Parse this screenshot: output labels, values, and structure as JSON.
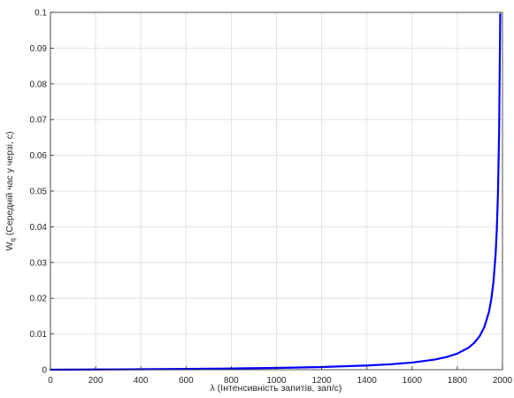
{
  "chart_data": {
    "type": "line",
    "title": "",
    "xlabel": "λ (Інтенсивність запитів, зап/с)",
    "ylabel_main": "W",
    "ylabel_sub": "q",
    "ylabel_rest": " (Середній час у черзі, с)",
    "xlim": [
      0,
      2000
    ],
    "ylim": [
      0,
      0.1
    ],
    "xticks": [
      0,
      200,
      400,
      600,
      800,
      1000,
      1200,
      1400,
      1600,
      1800,
      2000
    ],
    "yticks": [
      0,
      0.01,
      0.02,
      0.03,
      0.04,
      0.05,
      0.06,
      0.07,
      0.08,
      0.09,
      0.1
    ],
    "grid": true,
    "series": [
      {
        "color": "#0000ff",
        "x": [
          1,
          200,
          400,
          600,
          800,
          1000,
          1200,
          1400,
          1500,
          1600,
          1700,
          1750,
          1800,
          1850,
          1875,
          1900,
          1920,
          1940,
          1950,
          1960,
          1970,
          1975,
          1980,
          1985,
          1990
        ],
        "y": [
          3e-07,
          5.56e-05,
          0.000125,
          0.000214,
          0.000333,
          0.0005,
          0.00075,
          0.00117,
          0.0015,
          0.002,
          0.00283,
          0.0035,
          0.0045,
          0.00617,
          0.0075,
          0.0095,
          0.012,
          0.01617,
          0.0195,
          0.0245,
          0.03283,
          0.0395,
          0.0495,
          0.06617,
          0.0995
        ]
      }
    ]
  }
}
